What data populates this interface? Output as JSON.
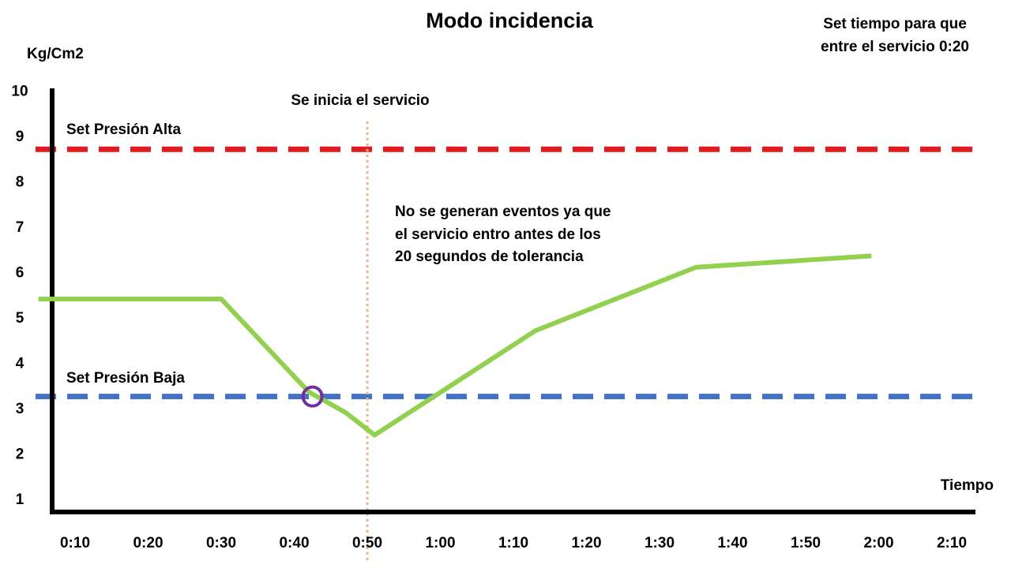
{
  "chart_data": {
    "type": "line",
    "title": "Modo incidencia",
    "ylabel": "Kg/Cm2",
    "xlabel": "Tiempo",
    "ylim": [
      1,
      10
    ],
    "y_ticks": [
      "1",
      "2",
      "3",
      "4",
      "5",
      "6",
      "7",
      "8",
      "9",
      "10"
    ],
    "x_ticks": [
      "0:10",
      "0:20",
      "0:30",
      "0:40",
      "0:50",
      "1:00",
      "1:10",
      "1:20",
      "1:30",
      "1:40",
      "1:50",
      "2:00",
      "2:10"
    ],
    "grid": false,
    "series": [
      {
        "color": "#92D050",
        "x": [
          5,
          10,
          30,
          42,
          47,
          51,
          73,
          95,
          119
        ],
        "y": [
          5.4,
          5.4,
          5.4,
          3.35,
          2.9,
          2.4,
          4.7,
          6.1,
          6.35
        ]
      }
    ],
    "thresholds": [
      {
        "label": "Set Presión Alta",
        "value": 8.7,
        "color": "#E31A1C"
      },
      {
        "label": "Set Presión Baja",
        "value": 3.25,
        "color": "#4472C4"
      }
    ],
    "service_start": {
      "label": "Se inicia el servicio",
      "x": 50,
      "color": "#F4B183"
    },
    "marker": {
      "x": 42.5,
      "y": 3.25,
      "color": "#7030A0"
    },
    "note_lines": [
      "Set tiempo para que",
      "entre el servicio 0:20"
    ],
    "annotation_lines": [
      "No se generan eventos ya que",
      "el servicio entro antes de los",
      "20 segundos de tolerancia"
    ]
  }
}
